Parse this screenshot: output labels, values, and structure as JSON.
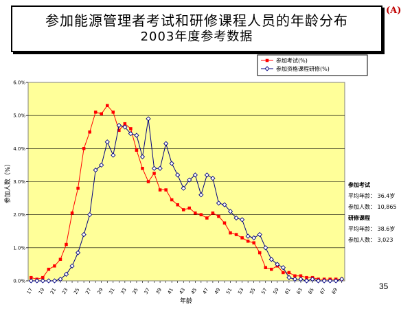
{
  "header": {
    "title_line1": "参加能源管理者考试和研修课程人员的年龄分布",
    "title_line2": "2003年度参考数据",
    "page_tag": "(A)"
  },
  "page_number": "35",
  "stats": {
    "exam_title": "参加考试",
    "exam_avg_label": "平均年龄：",
    "exam_avg": "36.4岁",
    "exam_count_label": "参加人数：",
    "exam_count": "10,865",
    "course_title": "研修课程",
    "course_avg_label": "平均年龄：",
    "course_avg": "38.6岁",
    "course_count_label": "参加人数：",
    "course_count": "3,023"
  },
  "colors": {
    "plot_bg": "#ffff99",
    "series_exam": "#ff0000",
    "series_course": "#000080"
  },
  "chart_data": {
    "type": "line",
    "xlabel": "年龄",
    "ylabel": "参加人数（%）",
    "ylim": [
      0,
      6
    ],
    "yticks": [
      "0.0%",
      "1.0%",
      "2.0%",
      "3.0%",
      "4.0%",
      "5.0%",
      "6.0%"
    ],
    "grid": "horizontal",
    "legend_position": "top-right",
    "x": [
      17,
      18,
      19,
      20,
      21,
      22,
      23,
      24,
      25,
      26,
      27,
      28,
      29,
      30,
      31,
      32,
      33,
      34,
      35,
      36,
      37,
      38,
      39,
      40,
      41,
      42,
      43,
      44,
      45,
      46,
      47,
      48,
      49,
      50,
      51,
      52,
      53,
      54,
      55,
      56,
      57,
      58,
      59,
      60,
      61,
      62,
      63,
      64,
      65,
      66,
      67,
      68,
      69,
      70
    ],
    "x_tick_labels": [
      "17",
      "19",
      "21",
      "23",
      "25",
      "27",
      "29",
      "31",
      "33",
      "35",
      "37",
      "39",
      "41",
      "43",
      "45",
      "47",
      "49",
      "51",
      "53",
      "55",
      "57",
      "59",
      "61",
      "63",
      "65",
      "67",
      "69"
    ],
    "series": [
      {
        "name": "参加考试(%)",
        "marker": "square",
        "values": [
          0.1,
          0.05,
          0.1,
          0.35,
          0.45,
          0.65,
          1.1,
          2.05,
          2.8,
          4.0,
          4.5,
          5.1,
          5.05,
          5.3,
          5.1,
          4.55,
          4.75,
          4.6,
          3.95,
          3.4,
          3.0,
          3.25,
          2.75,
          2.75,
          2.45,
          2.3,
          2.15,
          2.2,
          2.05,
          2.0,
          1.9,
          2.05,
          1.95,
          1.75,
          1.45,
          1.4,
          1.3,
          1.2,
          1.15,
          0.85,
          0.4,
          0.35,
          0.45,
          0.25,
          0.25,
          0.15,
          0.15,
          0.1,
          0.1,
          0.05,
          0.05,
          0.05,
          0.05,
          0.05
        ]
      },
      {
        "name": "参加资格课程研修(%)",
        "marker": "diamond",
        "values": [
          0.0,
          0.0,
          0.0,
          0.0,
          0.0,
          0.05,
          0.2,
          0.45,
          0.85,
          1.4,
          2.0,
          3.35,
          3.5,
          4.2,
          3.8,
          4.7,
          4.65,
          4.45,
          4.4,
          3.75,
          4.9,
          3.4,
          3.4,
          4.15,
          3.55,
          3.2,
          2.8,
          3.05,
          3.2,
          2.6,
          3.2,
          3.1,
          2.35,
          2.3,
          2.1,
          1.9,
          1.85,
          1.35,
          1.3,
          1.4,
          1.0,
          0.65,
          0.5,
          0.4,
          0.1,
          0.05,
          0.05,
          0.0,
          0.05,
          0.0,
          0.0,
          0.0,
          0.0,
          0.05
        ]
      }
    ]
  }
}
